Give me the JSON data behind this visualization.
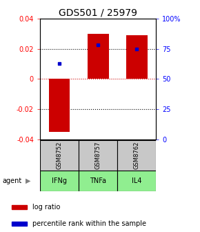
{
  "title": "GDS501 / 25979",
  "samples": [
    "GSM8752",
    "GSM8757",
    "GSM8762"
  ],
  "agents": [
    "IFNg",
    "TNFa",
    "IL4"
  ],
  "log_ratios": [
    -0.035,
    0.03,
    0.029
  ],
  "percentile_ranks_pct": [
    63,
    78,
    75
  ],
  "ylim_left": [
    -0.04,
    0.04
  ],
  "ylim_right": [
    0,
    100
  ],
  "bar_color": "#cc0000",
  "dot_color": "#0000cc",
  "agent_color": "#90ee90",
  "sample_color": "#c8c8c8",
  "title_fontsize": 10,
  "tick_fontsize": 7,
  "legend_fontsize": 7,
  "bar_width": 0.55
}
